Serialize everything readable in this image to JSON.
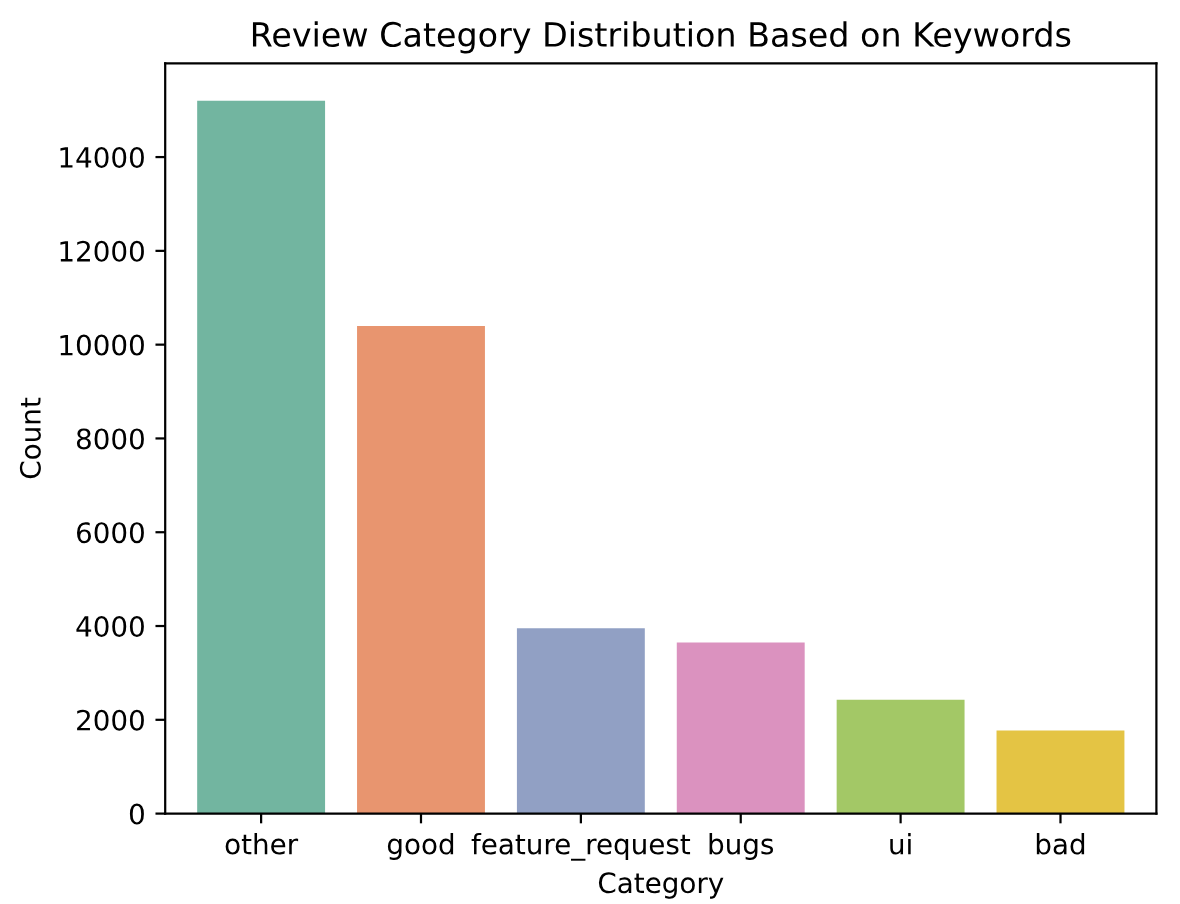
{
  "chart_data": {
    "type": "bar",
    "title": "Review Category Distribution Based on Keywords",
    "xlabel": "Category",
    "ylabel": "Count",
    "categories": [
      "other",
      "good",
      "feature_request",
      "bugs",
      "ui",
      "bad"
    ],
    "values": [
      15200,
      10400,
      3950,
      3650,
      2430,
      1770
    ],
    "colors": [
      "#72b5a0",
      "#e8956f",
      "#91a0c4",
      "#db92bf",
      "#a3c866",
      "#e4c444"
    ],
    "ylim": [
      0,
      16000
    ],
    "yticks": [
      0,
      2000,
      4000,
      6000,
      8000,
      10000,
      12000,
      14000
    ],
    "grid": false,
    "legend": false
  }
}
